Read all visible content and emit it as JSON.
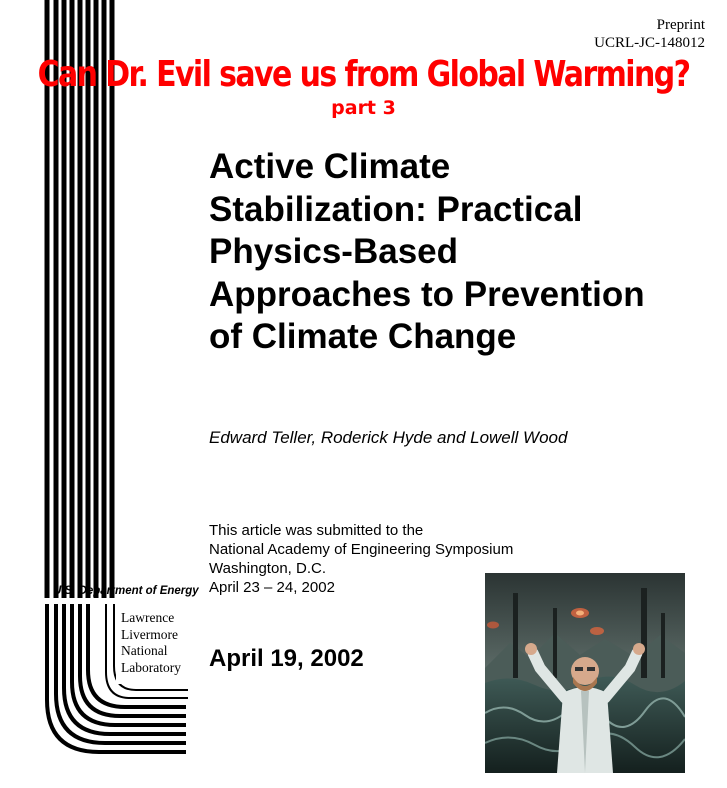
{
  "header": {
    "preprint_label": "Preprint",
    "report_number": "UCRL-JC-148012"
  },
  "banner": {
    "headline": "Can Dr. Evil save us from Global Warming?",
    "part": "part 3"
  },
  "document": {
    "title_lines": [
      "Active Climate",
      "Stabilization:  Practical",
      "Physics-Based",
      "Approaches to Prevention",
      "of Climate Change"
    ],
    "authors": "Edward Teller, Roderick Hyde and Lowell Wood",
    "submission_lines": [
      "This article was submitted to the",
      "National Academy of Engineering Symposium",
      "Washington, D.C.",
      "April 23 – 24, 2002"
    ],
    "date": "April 19, 2002"
  },
  "logo": {
    "department": "U.S. Department of Energy",
    "lab_lines": [
      "Lawrence",
      "Livermore",
      "National",
      "Laboratory"
    ]
  },
  "colors": {
    "banner": "#ff0000",
    "text": "#000000"
  }
}
